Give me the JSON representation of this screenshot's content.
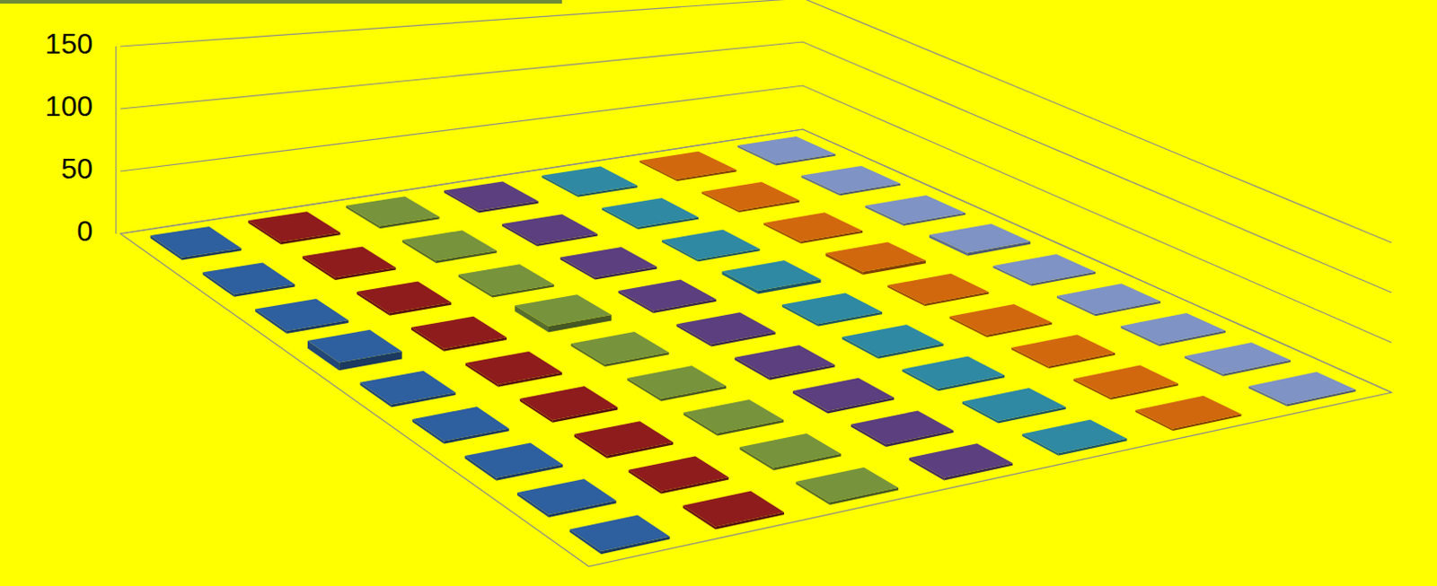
{
  "chart_data": {
    "type": "bar",
    "categories": [
      null,
      null,
      null,
      null,
      null,
      null,
      null,
      null,
      null
    ],
    "series": [
      {
        "color": "#2e5f9e",
        "values": [
          2,
          2,
          2,
          6,
          2,
          2,
          2,
          2,
          2
        ]
      },
      {
        "color": "#8e1c1c",
        "values": [
          2,
          2,
          2,
          2,
          2,
          2,
          2,
          2,
          2
        ]
      },
      {
        "color": "#77933c",
        "values": [
          2,
          2,
          2,
          5,
          2,
          2,
          2,
          2,
          2
        ]
      },
      {
        "color": "#5b3f7e",
        "values": [
          2,
          2,
          2,
          2,
          2,
          2,
          2,
          2,
          2
        ]
      },
      {
        "color": "#2f89a3",
        "values": [
          2,
          2,
          2,
          3,
          2,
          2,
          2,
          2,
          2
        ]
      },
      {
        "color": "#d2680e",
        "values": [
          2,
          2,
          2,
          3,
          2,
          2,
          2,
          2,
          2
        ]
      },
      {
        "color": "#7f93c4",
        "values": [
          2,
          2,
          2,
          3,
          2,
          2,
          2,
          2,
          2
        ]
      }
    ],
    "ylim": [
      0,
      150
    ],
    "yticks": [
      0,
      50,
      100,
      150
    ],
    "grid": true,
    "tick_labels": "y"
  }
}
